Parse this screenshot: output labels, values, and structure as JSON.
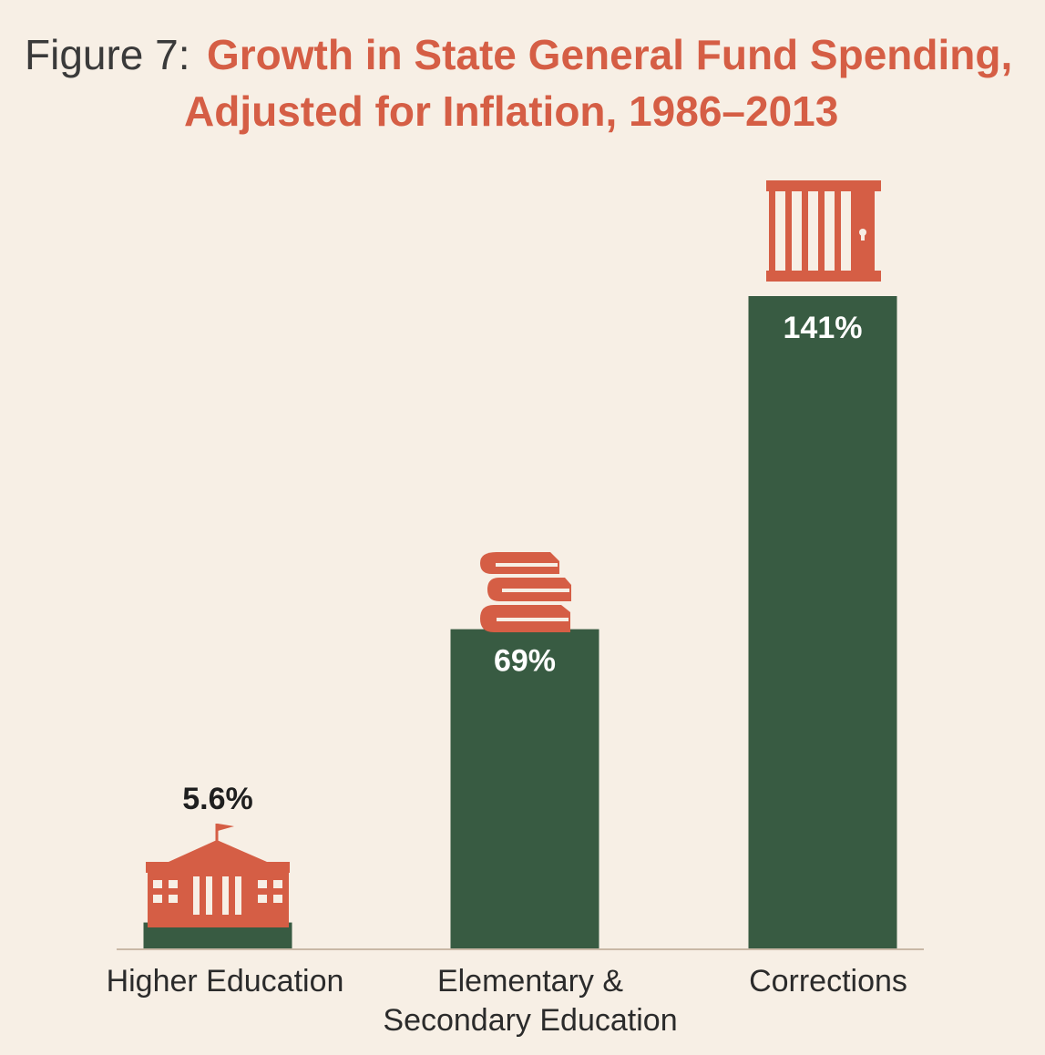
{
  "title": {
    "prefix": "Figure 7:",
    "line1": "Growth in State General Fund Spending,",
    "line2": "Adjusted for Inflation, 1986–2013"
  },
  "colors": {
    "background": "#f7efe5",
    "bar": "#385b42",
    "accent": "#d55e45",
    "axis": "#c9b8a6",
    "label_dark": "#1f1f1f",
    "label_light": "#ffffff"
  },
  "chart_data": {
    "type": "bar",
    "categories": [
      "Higher Education",
      "Elementary & Secondary Education",
      "Corrections"
    ],
    "category_lines": [
      [
        "Higher Education"
      ],
      [
        "Elementary &",
        "Secondary Education"
      ],
      [
        "Corrections"
      ]
    ],
    "values": [
      5.6,
      69,
      141
    ],
    "value_labels": [
      "5.6%",
      "69%",
      "141%"
    ],
    "icons": [
      "university-building-icon",
      "book-stack-icon",
      "jail-cell-icon"
    ],
    "title": "Growth in State General Fund Spending, Adjusted for Inflation, 1986–2013",
    "xlabel": "",
    "ylabel": "",
    "ylim": [
      0,
      141
    ],
    "grid": false,
    "legend": "none"
  }
}
